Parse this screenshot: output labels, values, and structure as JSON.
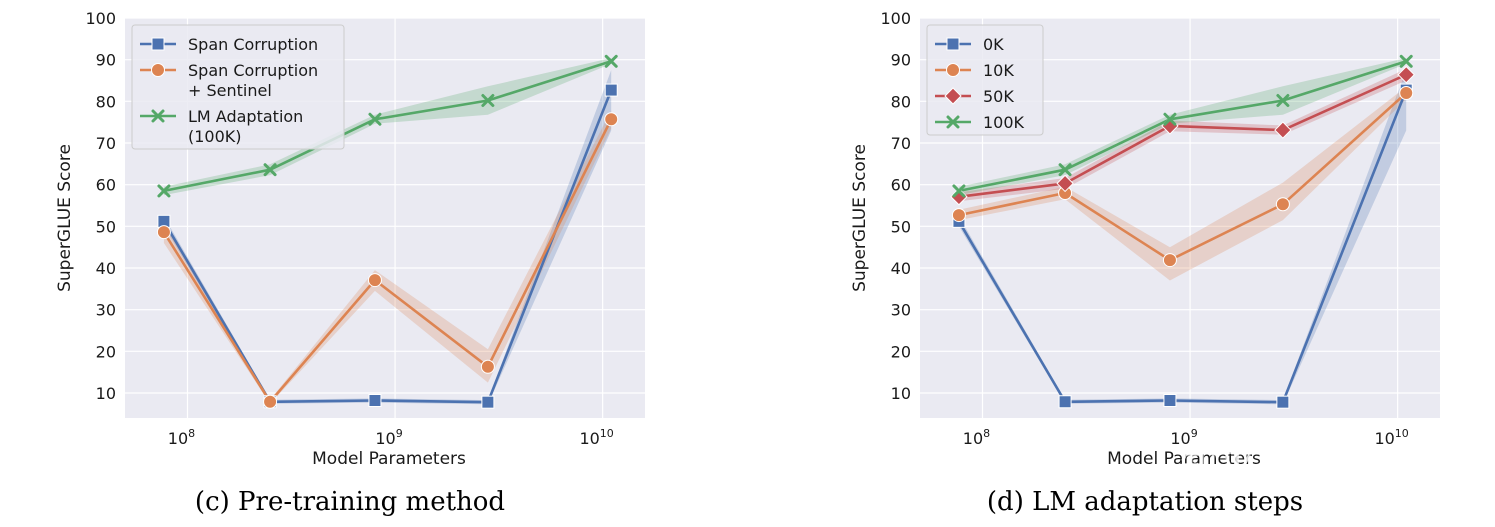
{
  "chart_data": [
    {
      "type": "line",
      "caption": "(c) Pre-training method",
      "xlabel": "Model Parameters",
      "ylabel": "SuperGLUE Score",
      "xscale": "log",
      "xlim": [
        50000000,
        16000000000
      ],
      "ylim": [
        4,
        100
      ],
      "yticks": [
        "10",
        "20",
        "30",
        "40",
        "50",
        "60",
        "70",
        "80",
        "90",
        "100"
      ],
      "xticks": [
        {
          "value": 100000000,
          "base": "10",
          "exp": "8"
        },
        {
          "value": 1000000000,
          "base": "10",
          "exp": "9"
        },
        {
          "value": 10000000000,
          "base": "10",
          "exp": "10"
        }
      ],
      "legend_position": "upper-left",
      "grid": true,
      "x": [
        77000000,
        250000000,
        800000000,
        2800000000,
        11000000000
      ],
      "series": [
        {
          "name": "Span Corruption",
          "label_lines": [
            "Span Corruption"
          ],
          "color": "#4c72b0",
          "marker": "square",
          "values": [
            51.2,
            7.9,
            8.2,
            7.8,
            82.7
          ],
          "lower": [
            50.0,
            7.4,
            7.7,
            7.3,
            73.0
          ],
          "upper": [
            52.4,
            8.4,
            8.7,
            8.3,
            87.5
          ]
        },
        {
          "name": "Span Corruption + Sentinel",
          "label_lines": [
            "Span Corruption",
            "+ Sentinel"
          ],
          "color": "#dd8452",
          "marker": "circle",
          "values": [
            48.6,
            7.9,
            37.1,
            16.3,
            75.7
          ],
          "lower": [
            46.0,
            7.4,
            34.5,
            12.5,
            73.5
          ],
          "upper": [
            51.0,
            8.4,
            39.5,
            20.5,
            77.8
          ]
        },
        {
          "name": "LM Adaptation (100K)",
          "label_lines": [
            "LM Adaptation",
            "(100K)"
          ],
          "color": "#55a868",
          "marker": "x",
          "values": [
            58.5,
            63.6,
            75.7,
            80.2,
            89.6
          ],
          "lower": [
            57.5,
            62.3,
            74.6,
            76.8,
            89.0
          ],
          "upper": [
            59.5,
            64.9,
            76.8,
            83.6,
            90.4
          ]
        }
      ]
    },
    {
      "type": "line",
      "caption": "(d) LM adaptation steps",
      "xlabel": "Model Parameters",
      "ylabel": "SuperGLUE Score",
      "xscale": "log",
      "xlim": [
        50000000,
        16000000000
      ],
      "ylim": [
        4,
        100
      ],
      "yticks": [
        "10",
        "20",
        "30",
        "40",
        "50",
        "60",
        "70",
        "80",
        "90",
        "100"
      ],
      "xticks": [
        {
          "value": 100000000,
          "base": "10",
          "exp": "8"
        },
        {
          "value": 1000000000,
          "base": "10",
          "exp": "9"
        },
        {
          "value": 10000000000,
          "base": "10",
          "exp": "10"
        }
      ],
      "legend_position": "upper-left",
      "grid": true,
      "x": [
        77000000,
        250000000,
        800000000,
        2800000000,
        11000000000
      ],
      "series": [
        {
          "name": "0K",
          "label_lines": [
            "0K"
          ],
          "color": "#4c72b0",
          "marker": "square",
          "values": [
            51.2,
            7.9,
            8.2,
            7.8,
            82.7
          ],
          "lower": [
            50.0,
            7.4,
            7.7,
            7.3,
            73.0
          ],
          "upper": [
            52.4,
            8.4,
            8.7,
            8.3,
            87.5
          ]
        },
        {
          "name": "10K",
          "label_lines": [
            "10K"
          ],
          "color": "#dd8452",
          "marker": "circle",
          "values": [
            52.7,
            58.0,
            41.9,
            55.3,
            82.0
          ],
          "lower": [
            51.5,
            56.5,
            37.0,
            51.5,
            80.5
          ],
          "upper": [
            54.0,
            59.5,
            45.0,
            60.5,
            83.5
          ]
        },
        {
          "name": "50K",
          "label_lines": [
            "50K"
          ],
          "color": "#c44e52",
          "marker": "diamond",
          "values": [
            57.1,
            60.3,
            74.1,
            73.1,
            86.4
          ],
          "lower": [
            56.0,
            59.0,
            72.8,
            72.0,
            85.0
          ],
          "upper": [
            58.2,
            61.6,
            75.4,
            74.2,
            87.8
          ]
        },
        {
          "name": "100K",
          "label_lines": [
            "100K"
          ],
          "color": "#55a868",
          "marker": "x",
          "values": [
            58.5,
            63.6,
            75.7,
            80.2,
            89.6
          ],
          "lower": [
            57.5,
            62.3,
            74.6,
            76.8,
            89.0
          ],
          "upper": [
            59.5,
            64.9,
            76.8,
            83.6,
            90.4
          ]
        }
      ]
    }
  ],
  "watermark": "知乎 @Alston"
}
